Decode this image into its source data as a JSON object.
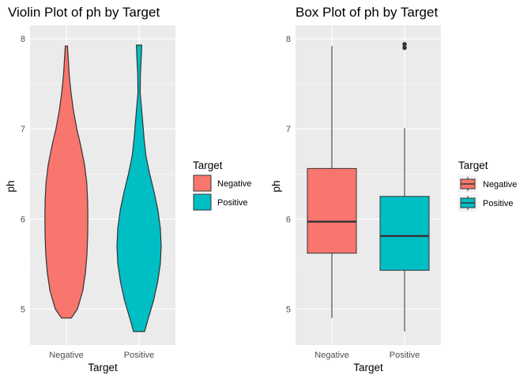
{
  "chart_data": [
    {
      "type": "violin",
      "title": "Violin Plot of ph by Target",
      "xlabel": "Target",
      "ylabel": "ph",
      "categories": [
        "Negative",
        "Positive"
      ],
      "ylim": [
        4.6,
        8.15
      ],
      "yticks": [
        5,
        6,
        7,
        8
      ],
      "grid": true,
      "legend": {
        "title": "Target",
        "entries": [
          "Negative",
          "Positive"
        ],
        "placement": "right"
      },
      "series": [
        {
          "name": "Negative",
          "min": 4.9,
          "max": 7.92,
          "density": [
            [
              4.9,
              0.22
            ],
            [
              5.0,
              0.5
            ],
            [
              5.2,
              0.74
            ],
            [
              5.4,
              0.86
            ],
            [
              5.6,
              0.93
            ],
            [
              5.8,
              0.96
            ],
            [
              6.0,
              0.97
            ],
            [
              6.2,
              0.96
            ],
            [
              6.4,
              0.92
            ],
            [
              6.6,
              0.82
            ],
            [
              6.8,
              0.66
            ],
            [
              7.0,
              0.47
            ],
            [
              7.2,
              0.32
            ],
            [
              7.4,
              0.21
            ],
            [
              7.6,
              0.13
            ],
            [
              7.8,
              0.08
            ],
            [
              7.92,
              0.05
            ]
          ]
        },
        {
          "name": "Positive",
          "min": 4.75,
          "max": 7.93,
          "density": [
            [
              4.75,
              0.25
            ],
            [
              4.9,
              0.42
            ],
            [
              5.1,
              0.66
            ],
            [
              5.3,
              0.84
            ],
            [
              5.5,
              0.96
            ],
            [
              5.7,
              1.0
            ],
            [
              5.9,
              0.96
            ],
            [
              6.1,
              0.85
            ],
            [
              6.3,
              0.68
            ],
            [
              6.5,
              0.48
            ],
            [
              6.7,
              0.31
            ],
            [
              6.9,
              0.22
            ],
            [
              7.0,
              0.19
            ],
            [
              7.2,
              0.12
            ],
            [
              7.4,
              0.05
            ],
            [
              7.6,
              0.06
            ],
            [
              7.8,
              0.1
            ],
            [
              7.93,
              0.12
            ]
          ]
        }
      ]
    },
    {
      "type": "box",
      "title": "Box Plot of ph by Target",
      "xlabel": "Target",
      "ylabel": "ph",
      "categories": [
        "Negative",
        "Positive"
      ],
      "ylim": [
        4.6,
        8.15
      ],
      "yticks": [
        5,
        6,
        7,
        8
      ],
      "grid": true,
      "legend": {
        "title": "Target",
        "entries": [
          "Negative",
          "Positive"
        ],
        "placement": "right"
      },
      "series": [
        {
          "name": "Negative",
          "whisker_low": 4.9,
          "q1": 5.62,
          "median": 5.97,
          "q3": 6.56,
          "whisker_high": 7.92,
          "outliers": []
        },
        {
          "name": "Positive",
          "whisker_low": 4.75,
          "q1": 5.43,
          "median": 5.81,
          "q3": 6.25,
          "whisker_high": 7.01,
          "outliers": [
            7.9,
            7.94
          ]
        }
      ]
    }
  ],
  "colors": {
    "Negative": "#F8766D",
    "Positive": "#00BFC4",
    "panel": "#EBEBEB",
    "grid": "#FFFFFF",
    "outline": "#333333"
  }
}
